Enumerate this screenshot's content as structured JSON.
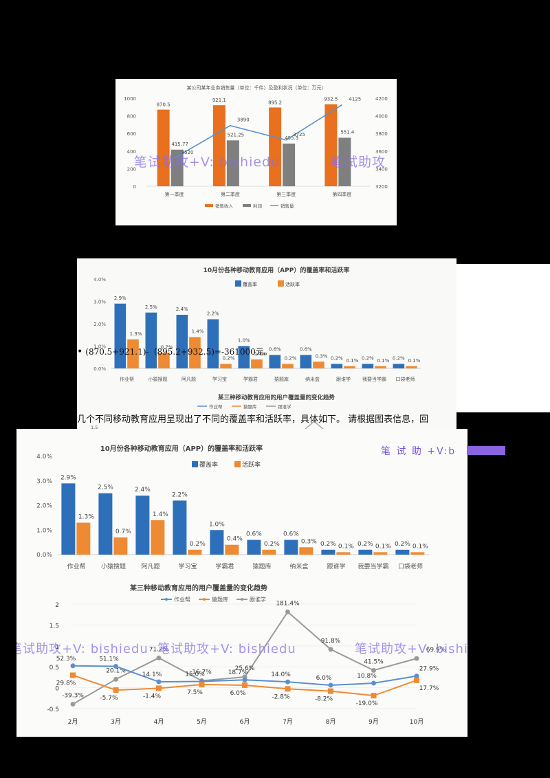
{
  "document": {
    "formula_line": "(870.5+921.1)-（895.2+932.5)=-361000元。",
    "bullet": "•",
    "intro_line": "几个不同移动教育应用呈现出了不同的覆盖率和活跃率，具体如下。 请根据图表信息，回",
    "watermark_badge": "笔 试 助 +V:b",
    "watermark_text": "笔试助攻+V: bishiedu",
    "watermark_short": "笔试助攻"
  },
  "colors": {
    "orange": "#e8701e",
    "gray": "#7f7f7f",
    "blue": "#2e6fba",
    "light_orange": "#ee8a33",
    "line_blue": "#5b8fd1",
    "watermark": "#8a6ee6"
  },
  "chart_data": [
    {
      "type": "bar",
      "title": "某公司某年业务销售量（单位：千件）及盈利状况（单位：万元）",
      "categories": [
        "第一季度",
        "第二季度",
        "第三季度",
        "第四季度"
      ],
      "series": [
        {
          "name": "销售收入",
          "type": "bar",
          "axis": "left",
          "values": [
            870.5,
            921.1,
            895.2,
            932.5
          ]
        },
        {
          "name": "利润",
          "type": "bar",
          "axis": "left",
          "values": [
            415.77,
            521.25,
            485.3,
            551.4
          ]
        },
        {
          "name": "销售量",
          "type": "line",
          "axis": "right",
          "values": [
            3520,
            3890,
            3725,
            4125
          ]
        }
      ],
      "y_left_ticks": [
        "0",
        "200",
        "400",
        "600",
        "800",
        "1000"
      ],
      "y_right_ticks": [
        "3200",
        "3400",
        "3600",
        "3800",
        "4000",
        "4200"
      ],
      "ylim_left": [
        0,
        1000
      ],
      "ylim_right": [
        3200,
        4200
      ],
      "legend": [
        "销售收入",
        "利润",
        "销售量"
      ],
      "legend_position": "bottom",
      "grid": false
    },
    {
      "type": "bar",
      "title": "10月份各种移动教育应用（APP）的覆盖率和活跃率",
      "categories": [
        "作业帮",
        "小猿搜题",
        "阿凡题",
        "学习宝",
        "学霸君",
        "猿题库",
        "纳米盒",
        "跟谁学",
        "我要当学霸",
        "口袋老师"
      ],
      "series": [
        {
          "name": "覆盖率",
          "values": [
            2.9,
            2.5,
            2.4,
            2.2,
            1.0,
            0.6,
            0.6,
            0.2,
            0.2,
            0.2
          ],
          "labels": [
            "2.9%",
            "2.5%",
            "2.4%",
            "2.2%",
            "1.0%",
            "0.6%",
            "0.6%",
            "0.2%",
            "0.2%",
            "0.2%"
          ]
        },
        {
          "name": "活跃率",
          "values": [
            1.3,
            0.7,
            1.4,
            0.2,
            0.4,
            0.2,
            0.3,
            0.1,
            0.1,
            0.1
          ],
          "labels": [
            "1.3%",
            "0.7%",
            "1.4%",
            "0.2%",
            "0.4%",
            "0.2%",
            "0.3%",
            "0.1%",
            "0.1%",
            "0.1%"
          ]
        }
      ],
      "y_ticks": [
        "0.0%",
        "1.0%",
        "2.0%",
        "3.0%",
        "4.0%"
      ],
      "ylim": [
        0,
        4
      ],
      "ylabel": "",
      "legend": [
        "覆盖率",
        "活跃率"
      ],
      "legend_position": "top",
      "grid": false
    },
    {
      "type": "line",
      "title": "某三种移动教育应用的用户覆盖量的变化趋势",
      "x": [
        "2月",
        "3月",
        "4月",
        "5月",
        "6月",
        "7月",
        "8月",
        "9月",
        "10月"
      ],
      "series": [
        {
          "name": "作业帮",
          "values": [
            0.523,
            0.511,
            0.141,
            0.15,
            0.187,
            0.14,
            0.06,
            0.108,
            0.279
          ],
          "labels": [
            "52.3%",
            "51.1%",
            "14.1%",
            "15.0%",
            "18.7%",
            "14.0%",
            "6.0%",
            "10.8%",
            "27.9%"
          ]
        },
        {
          "name": "猿题库",
          "values": [
            0.298,
            -0.057,
            -0.014,
            0.075,
            0.06,
            -0.028,
            -0.082,
            -0.19,
            0.177
          ],
          "labels": [
            "29.8%",
            "-5.7%",
            "-1.4%",
            "7.5%",
            "6.0%",
            "-2.8%",
            "-8.2%",
            "-19.0%",
            "17.7%"
          ]
        },
        {
          "name": "跟谁学",
          "values": [
            -0.393,
            0.201,
            0.712,
            0.167,
            0.256,
            1.814,
            0.918,
            0.415,
            0.699
          ],
          "labels": [
            "-39.3%",
            "20.1%",
            "71.2%",
            "16.7%",
            "25.6%",
            "181.4%",
            "91.8%",
            "41.5%",
            "69.9%"
          ]
        }
      ],
      "y_ticks": [
        "-0.5",
        "0",
        "0.5",
        "1",
        "1.5",
        "2"
      ],
      "ylim": [
        -0.5,
        2
      ],
      "legend": [
        "作业帮",
        "猿题库",
        "跟谁学"
      ],
      "legend_position": "top",
      "grid": true
    }
  ]
}
